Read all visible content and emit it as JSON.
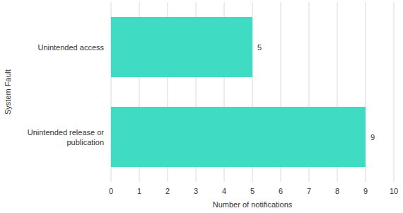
{
  "chart_data": {
    "type": "bar",
    "orientation": "horizontal",
    "categories": [
      "Unintended access",
      "Unintended release or publication"
    ],
    "values": [
      5,
      9
    ],
    "color": "#3fdbc3",
    "x_label": "Number of notifications",
    "y_label": "System Fault",
    "xlim": [
      0,
      10
    ],
    "xticks": [
      0,
      1,
      2,
      3,
      4,
      5,
      6,
      7,
      8,
      9,
      10
    ],
    "grid": true,
    "data_labels": true
  }
}
